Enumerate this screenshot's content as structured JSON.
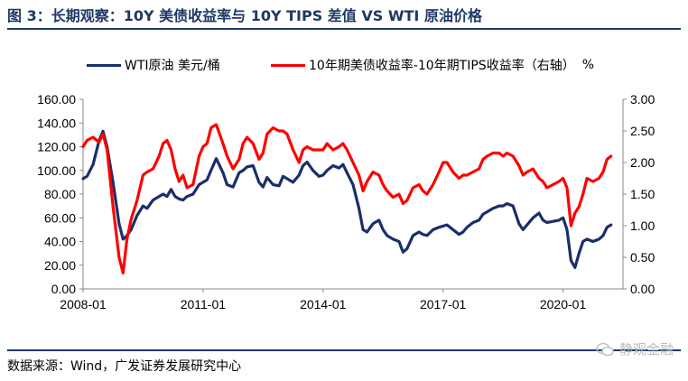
{
  "header": {
    "title": "图 3：长期观察：10Y 美债收益率与 10Y TIPS 差值  VS WTI 原油价格"
  },
  "footer": {
    "source": "数据来源：Wind，广发证券发展研究中心",
    "watermark": "静观金融",
    "watermark_icon": "wechat-icon"
  },
  "colors": {
    "wti": "#1b2e6b",
    "breakeven": "#ff0000",
    "title": "#1f3864"
  },
  "chart_data": {
    "type": "line",
    "title": "",
    "xlabel": "",
    "ylabel_left": "",
    "ylabel_right": "%",
    "xlim": [
      2008.0,
      2021.5
    ],
    "ylim_left": [
      0,
      160
    ],
    "ylim_right": [
      0,
      3
    ],
    "yticks_left": [
      "0.00",
      "20.00",
      "40.00",
      "60.00",
      "80.00",
      "100.00",
      "120.00",
      "140.00",
      "160.00"
    ],
    "yticks_right": [
      "0.00",
      "0.50",
      "1.00",
      "1.50",
      "2.00",
      "2.50",
      "3.00"
    ],
    "xticks": [
      {
        "label": "2008-01",
        "x": 2008.0
      },
      {
        "label": "2011-01",
        "x": 2011.0
      },
      {
        "label": "2014-01",
        "x": 2014.0
      },
      {
        "label": "2017-01",
        "x": 2017.0
      },
      {
        "label": "2020-01",
        "x": 2020.0
      }
    ],
    "grid": false,
    "legend": "top",
    "series": [
      {
        "name": "WTI原油 美元/桶",
        "axis": "left",
        "x": [
          2008.0,
          2008.1,
          2008.25,
          2008.4,
          2008.5,
          2008.6,
          2008.75,
          2008.9,
          2009.0,
          2009.1,
          2009.2,
          2009.35,
          2009.5,
          2009.6,
          2009.75,
          2009.9,
          2010.0,
          2010.1,
          2010.2,
          2010.3,
          2010.4,
          2010.5,
          2010.6,
          2010.75,
          2010.9,
          2011.0,
          2011.1,
          2011.2,
          2011.33,
          2011.5,
          2011.6,
          2011.75,
          2011.9,
          2012.0,
          2012.1,
          2012.25,
          2012.4,
          2012.5,
          2012.6,
          2012.75,
          2012.9,
          2013.0,
          2013.1,
          2013.25,
          2013.4,
          2013.5,
          2013.6,
          2013.75,
          2013.9,
          2014.0,
          2014.1,
          2014.25,
          2014.4,
          2014.5,
          2014.6,
          2014.75,
          2014.9,
          2015.0,
          2015.1,
          2015.25,
          2015.4,
          2015.5,
          2015.6,
          2015.75,
          2015.9,
          2016.0,
          2016.1,
          2016.25,
          2016.4,
          2016.5,
          2016.6,
          2016.75,
          2016.9,
          2017.0,
          2017.1,
          2017.25,
          2017.4,
          2017.5,
          2017.6,
          2017.75,
          2017.9,
          2018.0,
          2018.1,
          2018.25,
          2018.4,
          2018.5,
          2018.6,
          2018.75,
          2018.9,
          2019.0,
          2019.1,
          2019.25,
          2019.4,
          2019.5,
          2019.6,
          2019.75,
          2019.9,
          2020.0,
          2020.1,
          2020.2,
          2020.3,
          2020.4,
          2020.5,
          2020.6,
          2020.75,
          2020.9,
          2021.0,
          2021.1,
          2021.2
        ],
        "values": [
          93,
          95,
          105,
          125,
          133,
          120,
          90,
          55,
          42,
          45,
          50,
          62,
          70,
          68,
          75,
          78,
          80,
          78,
          84,
          78,
          76,
          75,
          78,
          80,
          88,
          90,
          92,
          100,
          110,
          98,
          88,
          86,
          98,
          100,
          103,
          104,
          90,
          86,
          94,
          88,
          87,
          95,
          93,
          90,
          96,
          104,
          107,
          100,
          95,
          96,
          100,
          104,
          102,
          105,
          98,
          88,
          68,
          50,
          48,
          55,
          58,
          50,
          45,
          42,
          40,
          31,
          34,
          45,
          48,
          46,
          45,
          50,
          52,
          53,
          54,
          50,
          46,
          48,
          52,
          56,
          58,
          63,
          65,
          68,
          70,
          70,
          72,
          70,
          55,
          50,
          54,
          60,
          64,
          58,
          56,
          57,
          58,
          60,
          50,
          24,
          18,
          30,
          40,
          42,
          40,
          42,
          45,
          52,
          54
        ]
      },
      {
        "name": "10年期美债收益率-10年期TIPS收益率（右轴）",
        "axis": "right",
        "x": [
          2008.0,
          2008.1,
          2008.25,
          2008.4,
          2008.5,
          2008.6,
          2008.75,
          2008.9,
          2009.0,
          2009.1,
          2009.2,
          2009.35,
          2009.5,
          2009.6,
          2009.75,
          2009.9,
          2010.0,
          2010.1,
          2010.2,
          2010.3,
          2010.4,
          2010.5,
          2010.6,
          2010.75,
          2010.9,
          2011.0,
          2011.1,
          2011.2,
          2011.33,
          2011.5,
          2011.6,
          2011.75,
          2011.9,
          2012.0,
          2012.1,
          2012.25,
          2012.4,
          2012.5,
          2012.6,
          2012.75,
          2012.9,
          2013.0,
          2013.1,
          2013.25,
          2013.4,
          2013.5,
          2013.6,
          2013.75,
          2013.9,
          2014.0,
          2014.1,
          2014.25,
          2014.4,
          2014.5,
          2014.6,
          2014.75,
          2014.9,
          2015.0,
          2015.1,
          2015.25,
          2015.4,
          2015.5,
          2015.6,
          2015.75,
          2015.9,
          2016.0,
          2016.1,
          2016.25,
          2016.4,
          2016.5,
          2016.6,
          2016.75,
          2016.9,
          2017.0,
          2017.1,
          2017.25,
          2017.4,
          2017.5,
          2017.6,
          2017.75,
          2017.9,
          2018.0,
          2018.1,
          2018.25,
          2018.4,
          2018.5,
          2018.6,
          2018.75,
          2018.9,
          2019.0,
          2019.1,
          2019.25,
          2019.4,
          2019.5,
          2019.6,
          2019.75,
          2019.9,
          2020.0,
          2020.1,
          2020.2,
          2020.3,
          2020.4,
          2020.5,
          2020.6,
          2020.75,
          2020.9,
          2021.0,
          2021.1,
          2021.2
        ],
        "values": [
          2.25,
          2.35,
          2.4,
          2.32,
          2.45,
          2.2,
          1.3,
          0.5,
          0.25,
          0.8,
          1.1,
          1.4,
          1.8,
          1.85,
          1.9,
          2.1,
          2.3,
          2.35,
          2.2,
          1.9,
          1.7,
          1.8,
          1.6,
          1.65,
          2.1,
          2.25,
          2.3,
          2.55,
          2.6,
          2.3,
          2.1,
          1.9,
          2.05,
          2.3,
          2.4,
          2.3,
          2.05,
          2.15,
          2.45,
          2.55,
          2.5,
          2.5,
          2.45,
          2.2,
          2.0,
          2.2,
          2.25,
          2.2,
          2.2,
          2.2,
          2.3,
          2.2,
          2.25,
          2.3,
          2.2,
          2.0,
          1.8,
          1.55,
          1.7,
          1.85,
          1.8,
          1.65,
          1.55,
          1.45,
          1.5,
          1.35,
          1.4,
          1.6,
          1.65,
          1.55,
          1.5,
          1.65,
          1.85,
          2.0,
          2.0,
          1.85,
          1.75,
          1.8,
          1.8,
          1.85,
          1.9,
          2.05,
          2.1,
          2.15,
          2.15,
          2.1,
          2.15,
          2.1,
          1.95,
          1.8,
          1.85,
          1.9,
          1.75,
          1.7,
          1.6,
          1.65,
          1.7,
          1.75,
          1.6,
          1.0,
          1.2,
          1.3,
          1.5,
          1.75,
          1.7,
          1.75,
          1.85,
          2.05,
          2.1
        ]
      }
    ]
  }
}
